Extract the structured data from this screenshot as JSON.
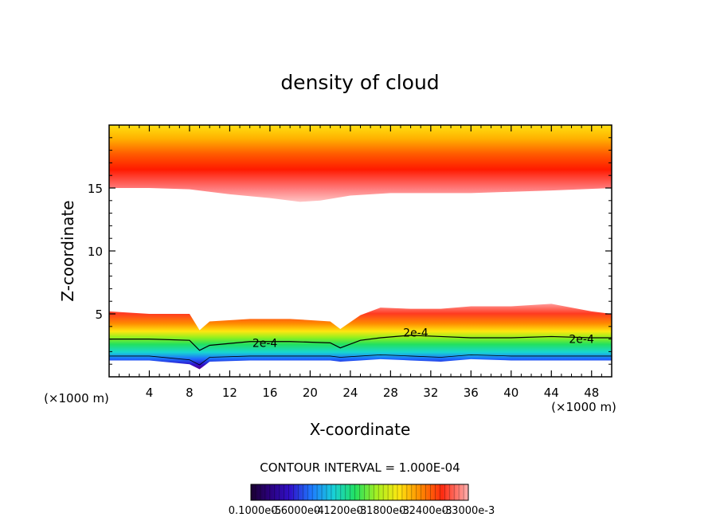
{
  "chart_data": {
    "type": "heatmap",
    "title": "density of cloud",
    "xlabel": "X-coordinate",
    "ylabel": "Z-coordinate",
    "x_unit": "(×1000 m)",
    "xlim": [
      0,
      50
    ],
    "ylim": [
      0,
      20
    ],
    "x_ticks": [
      4,
      8,
      12,
      16,
      20,
      24,
      28,
      32,
      36,
      40,
      44,
      48
    ],
    "y_ticks": [
      5,
      10,
      15
    ],
    "upper_layer": {
      "x": [
        0,
        4,
        8,
        12,
        16,
        19,
        21,
        24,
        28,
        32,
        36,
        40,
        44,
        50
      ],
      "base_z": [
        15.0,
        15.0,
        14.9,
        14.5,
        14.2,
        13.9,
        14.0,
        14.4,
        14.6,
        14.6,
        14.6,
        14.7,
        14.8,
        15.0
      ]
    },
    "lower_layer": {
      "x": [
        0,
        4,
        8,
        9,
        10,
        14,
        18,
        22,
        23,
        25,
        27,
        30,
        33,
        36,
        40,
        44,
        48,
        50
      ],
      "top_z": [
        5.2,
        5.0,
        5.0,
        3.7,
        4.4,
        4.6,
        4.6,
        4.4,
        3.8,
        4.9,
        5.5,
        5.4,
        5.4,
        5.6,
        5.6,
        5.8,
        5.2,
        5.0
      ],
      "contour_2e4_z": [
        3.0,
        3.0,
        2.9,
        2.1,
        2.5,
        2.8,
        2.8,
        2.7,
        2.3,
        2.9,
        3.1,
        3.3,
        3.2,
        3.1,
        3.1,
        3.2,
        3.1,
        3.1
      ],
      "base_z": [
        1.3,
        1.3,
        1.0,
        0.6,
        1.2,
        1.3,
        1.3,
        1.3,
        1.2,
        1.3,
        1.4,
        1.3,
        1.2,
        1.4,
        1.3,
        1.3,
        1.3,
        1.3
      ]
    },
    "contour_labels": [
      {
        "text": "2e-4",
        "x": 15.5,
        "z": 2.7
      },
      {
        "text": "2e-4",
        "x": 47.0,
        "z": 3.0
      },
      {
        "text": "2e-4",
        "x": 30.5,
        "z": 3.5
      }
    ],
    "contour_interval_text": "CONTOUR INTERVAL = 1.000E-04",
    "colorbar_labels": [
      "0.1000e-5",
      "0.6000e-4",
      "0.1200e-3",
      "0.1800e-3",
      "0.2400e-3",
      "0.3000e-3"
    ],
    "colorscale": [
      "#2a0078",
      "#3010c8",
      "#1e5cff",
      "#14b4ff",
      "#18dcc8",
      "#22e060",
      "#5ce828",
      "#b6f020",
      "#ffe610",
      "#ffb800",
      "#ff6a00",
      "#ff1a00",
      "#ff6a6a",
      "#ffc4c4"
    ]
  }
}
